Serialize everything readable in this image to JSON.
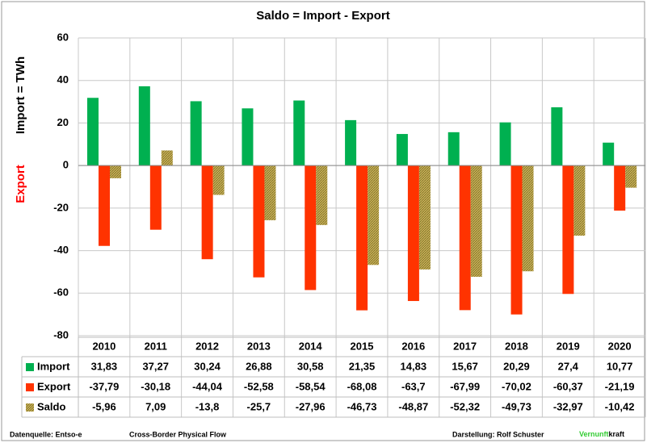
{
  "chart_data": {
    "type": "bar",
    "title": "Saldo  =  Import - Export",
    "ylabel_export": "Export",
    "ylabel_import": "Import  =  TWh",
    "categories": [
      "2010",
      "2011",
      "2012",
      "2013",
      "2014",
      "2015",
      "2016",
      "2017",
      "2018",
      "2019",
      "2020"
    ],
    "series": [
      {
        "name": "Import",
        "color": "#00b050",
        "values": [
          31.83,
          37.27,
          30.24,
          26.88,
          30.58,
          21.35,
          14.83,
          15.67,
          20.29,
          27.4,
          10.77
        ],
        "value_labels": [
          "31,83",
          "37,27",
          "30,24",
          "26,88",
          "30,58",
          "21,35",
          "14,83",
          "15,67",
          "20,29",
          "27,4",
          "10,77"
        ]
      },
      {
        "name": "Export",
        "color": "#ff3300",
        "values": [
          -37.79,
          -30.18,
          -44.04,
          -52.58,
          -58.54,
          -68.08,
          -63.7,
          -67.99,
          -70.02,
          -60.37,
          -21.19
        ],
        "value_labels": [
          "-37,79",
          "-30,18",
          "-44,04",
          "-52,58",
          "-58,54",
          "-68,08",
          "-63,7",
          "-67,99",
          "-70,02",
          "-60,37",
          "-21,19"
        ]
      },
      {
        "name": "Saldo",
        "color": "#b09a3c",
        "values": [
          -5.96,
          7.09,
          -13.8,
          -25.7,
          -27.96,
          -46.73,
          -48.87,
          -52.32,
          -49.73,
          -32.97,
          -10.42
        ],
        "value_labels": [
          "-5,96",
          "7,09",
          "-13,8",
          "-25,7",
          "-27,96",
          "-46,73",
          "-48,87",
          "-52,32",
          "-49,73",
          "-32,97",
          "-10,42"
        ]
      }
    ],
    "ylim": [
      -80,
      60
    ],
    "yticks": [
      -80,
      -60,
      -40,
      -20,
      0,
      20,
      40,
      60
    ],
    "grid": true,
    "footer": {
      "source": "Datenquelle: Entso-e",
      "flow": "Cross-Border Physical Flow",
      "author": "Darstellung:  Rolf Schuster",
      "brand_green": "Vernunft",
      "brand_black": "kraft"
    }
  }
}
